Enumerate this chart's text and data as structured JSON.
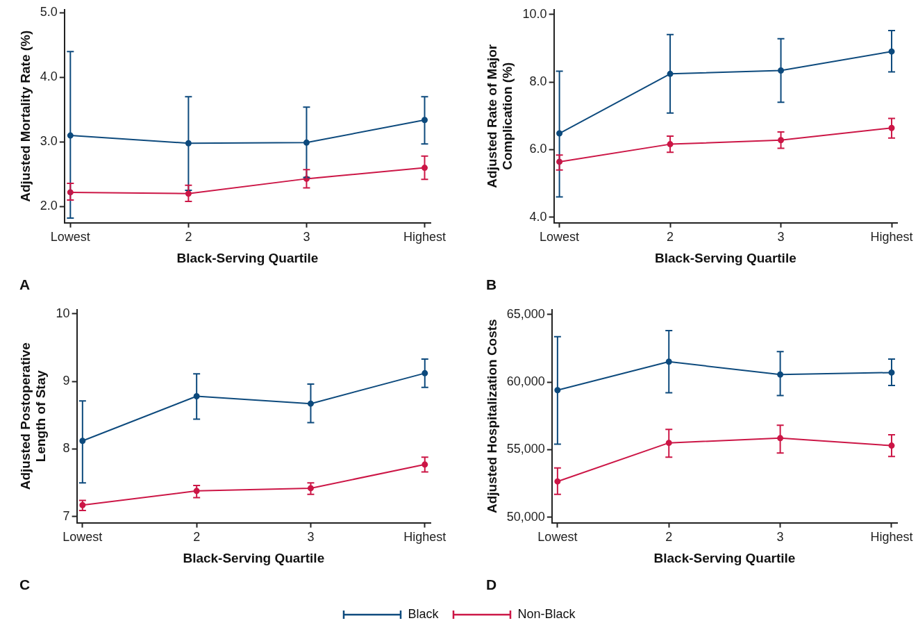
{
  "chart_data": [
    {
      "type": "line",
      "categories": [
        "Lowest",
        "2",
        "3",
        "Highest"
      ],
      "xlabel": "Black-Serving Quartile",
      "ylabel": "Adjusted Mortality Rate (%)",
      "annotations": [
        "A"
      ],
      "marker": "circle",
      "grid": false,
      "legend": false,
      "ylim": [
        1.75,
        5.05
      ],
      "yticks": [
        {
          "value": 2,
          "label": "2.0"
        },
        {
          "value": 3,
          "label": "3.0"
        },
        {
          "value": 4,
          "label": "4.0"
        },
        {
          "value": 5,
          "label": "5.0"
        }
      ],
      "series": [
        {
          "color": "#0d4a7d",
          "values": [
            3.1,
            2.98,
            2.99,
            3.34
          ],
          "errors": [
            [
              1.82,
              4.4
            ],
            [
              2.25,
              3.7
            ],
            [
              2.45,
              3.54
            ],
            [
              2.97,
              3.7
            ]
          ]
        },
        {
          "color": "#cc1646",
          "values": [
            2.22,
            2.2,
            2.43,
            2.6
          ],
          "errors": [
            [
              2.1,
              2.36
            ],
            [
              2.08,
              2.33
            ],
            [
              2.29,
              2.57
            ],
            [
              2.42,
              2.78
            ]
          ]
        }
      ]
    },
    {
      "type": "line",
      "categories": [
        "Lowest",
        "2",
        "3",
        "Highest"
      ],
      "xlabel": "Black-Serving Quartile",
      "ylabel": "Adjusted Rate of Major Complication (%)",
      "annotations": [
        "B"
      ],
      "marker": "circle",
      "grid": false,
      "legend": false,
      "ylim": [
        3.84,
        10.14
      ],
      "yticks": [
        {
          "value": 4,
          "label": "4.0"
        },
        {
          "value": 6,
          "label": "6.0"
        },
        {
          "value": 8,
          "label": "8.0"
        },
        {
          "value": 10,
          "label": "10.0"
        }
      ],
      "series": [
        {
          "color": "#0d4a7d",
          "values": [
            6.48,
            8.24,
            8.34,
            8.9
          ],
          "errors": [
            [
              4.6,
              8.32
            ],
            [
              7.08,
              9.4
            ],
            [
              7.4,
              9.28
            ],
            [
              8.3,
              9.52
            ]
          ]
        },
        {
          "color": "#cc1646",
          "values": [
            5.64,
            6.16,
            6.28,
            6.64
          ],
          "errors": [
            [
              5.4,
              5.84
            ],
            [
              5.92,
              6.4
            ],
            [
              6.04,
              6.52
            ],
            [
              6.34,
              6.92
            ]
          ]
        }
      ]
    },
    {
      "type": "line",
      "categories": [
        "Lowest",
        "2",
        "3",
        "Highest"
      ],
      "xlabel": "Black-Serving Quartile",
      "ylabel": "Adjusted Postoperative Length of Stay",
      "annotations": [
        "C"
      ],
      "marker": "circle",
      "grid": false,
      "legend": false,
      "ylim": [
        6.91,
        10.06
      ],
      "yticks": [
        7,
        8,
        9,
        10
      ],
      "series": [
        {
          "color": "#0d4a7d",
          "values": [
            8.12,
            8.78,
            8.67,
            9.12
          ],
          "errors": [
            [
              7.5,
              8.71
            ],
            [
              8.44,
              9.11
            ],
            [
              8.39,
              8.96
            ],
            [
              8.91,
              9.33
            ]
          ]
        },
        {
          "color": "#cc1646",
          "values": [
            7.17,
            7.38,
            7.42,
            7.77
          ],
          "errors": [
            [
              7.09,
              7.24
            ],
            [
              7.28,
              7.46
            ],
            [
              7.33,
              7.5
            ],
            [
              7.66,
              7.88
            ]
          ]
        }
      ]
    },
    {
      "type": "line",
      "categories": [
        "Lowest",
        "2",
        "3",
        "Highest"
      ],
      "xlabel": "Black-Serving Quartile",
      "ylabel": "Adjusted Hospitalization Costs",
      "annotations": [
        "D"
      ],
      "marker": "circle",
      "grid": false,
      "legend": "bottom",
      "ylim": [
        49600,
        65350
      ],
      "yticks": [
        {
          "value": 50000,
          "label": "50,000"
        },
        {
          "value": 55000,
          "label": "55,000"
        },
        {
          "value": 60000,
          "label": "60,000"
        },
        {
          "value": 65000,
          "label": "65,000"
        }
      ],
      "series": [
        {
          "name": "Black",
          "color": "#0d4a7d",
          "values": [
            59400,
            61500,
            60550,
            60700
          ],
          "errors": [
            [
              55400,
              63350
            ],
            [
              59200,
              63800
            ],
            [
              59000,
              62250
            ],
            [
              59750,
              61700
            ]
          ]
        },
        {
          "name": "Non-Black",
          "color": "#cc1646",
          "values": [
            52650,
            55500,
            55850,
            55300
          ],
          "errors": [
            [
              51700,
              53650
            ],
            [
              54450,
              56500
            ],
            [
              54750,
              56800
            ],
            [
              54500,
              56100
            ]
          ]
        }
      ]
    }
  ]
}
